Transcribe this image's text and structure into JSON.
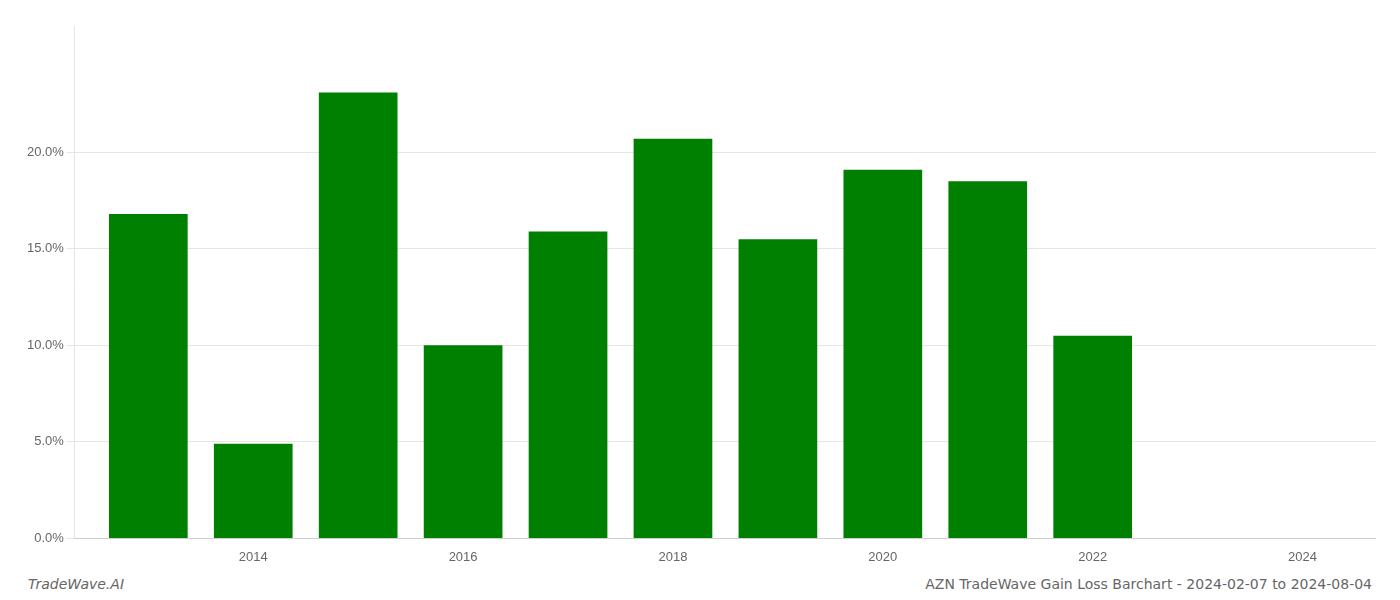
{
  "chart_data": {
    "type": "bar",
    "title": "AZN TradeWave Gain Loss Barchart - 2024-02-07 to 2024-08-04",
    "annotations": [
      "TradeWave.AI"
    ],
    "x": [
      2013,
      2014,
      2015,
      2016,
      2017,
      2018,
      2019,
      2020,
      2021,
      2022
    ],
    "values": [
      0.168,
      0.049,
      0.231,
      0.1,
      0.159,
      0.207,
      0.155,
      0.191,
      0.185,
      0.105
    ],
    "color": "#008000",
    "xlim": [
      2012.3,
      2024.7
    ],
    "xticks": [
      2014,
      2016,
      2018,
      2020,
      2022,
      2024
    ],
    "ylim": [
      0.0,
      0.265
    ],
    "yticks": [
      {
        "value": 0.0,
        "label": "0.0%"
      },
      {
        "value": 0.05,
        "label": "5.0%"
      },
      {
        "value": 0.1,
        "label": "10.0%"
      },
      {
        "value": 0.15,
        "label": "15.0%"
      },
      {
        "value": 0.2,
        "label": "20.0%"
      }
    ],
    "grid": true
  }
}
